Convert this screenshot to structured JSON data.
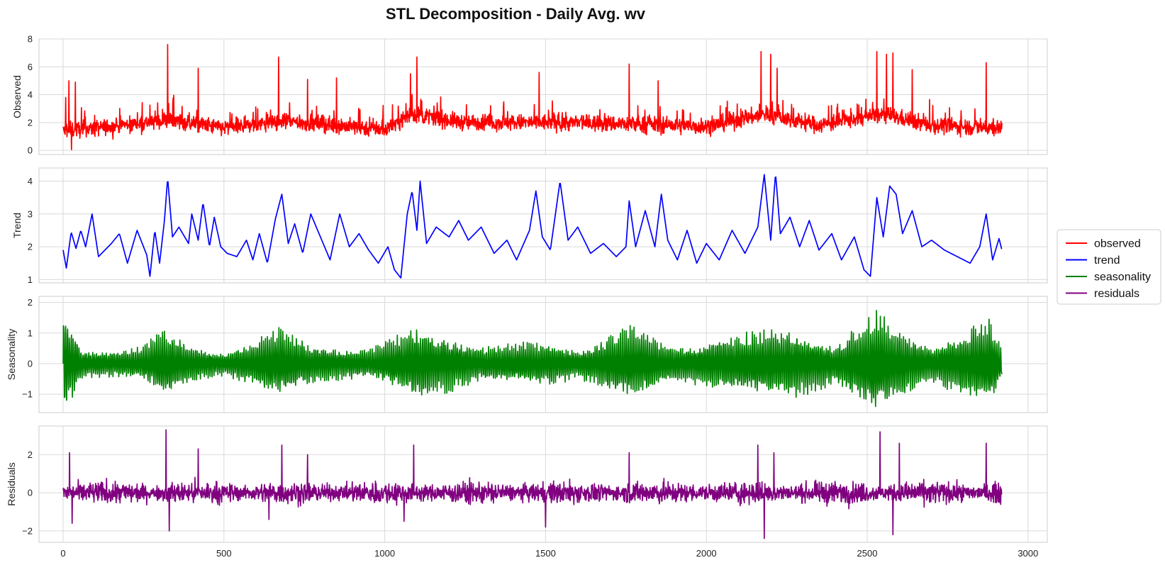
{
  "chart_data": {
    "type": "line",
    "title": "STL Decomposition - Daily Avg. wv",
    "xlim": [
      -75,
      3060
    ],
    "x_ticks": [
      "0",
      "500",
      "1000",
      "1500",
      "2000",
      "2500",
      "3000"
    ],
    "n_points": 2920,
    "grid": true,
    "legend": {
      "placement": "right-center",
      "entries": [
        "observed",
        "trend",
        "seasonality",
        "residuals"
      ]
    },
    "panels": [
      {
        "key": "observed",
        "ylabel": "Observed",
        "color": "#ff0000",
        "ylim": [
          -0.3,
          8.0
        ],
        "y_ticks": [
          "0",
          "2",
          "4",
          "6",
          "8"
        ],
        "baseline": [
          [
            0,
            1.4
          ],
          [
            150,
            1.7
          ],
          [
            330,
            2.2
          ],
          [
            500,
            1.6
          ],
          [
            680,
            2.1
          ],
          [
            850,
            1.8
          ],
          [
            1000,
            1.5
          ],
          [
            1080,
            2.6
          ],
          [
            1250,
            2.0
          ],
          [
            1500,
            2.0
          ],
          [
            1750,
            1.9
          ],
          [
            2000,
            1.7
          ],
          [
            2180,
            2.6
          ],
          [
            2350,
            1.8
          ],
          [
            2550,
            2.6
          ],
          [
            2700,
            1.8
          ],
          [
            2920,
            1.6
          ]
        ],
        "amplitude": 0.55,
        "spikes": [
          [
            8,
            3.8
          ],
          [
            18,
            5.0
          ],
          [
            26,
            0.05
          ],
          [
            38,
            4.9
          ],
          [
            325,
            7.6
          ],
          [
            420,
            5.9
          ],
          [
            670,
            6.7
          ],
          [
            760,
            5.1
          ],
          [
            850,
            5.2
          ],
          [
            1080,
            5.5
          ],
          [
            1100,
            6.7
          ],
          [
            1480,
            5.6
          ],
          [
            1760,
            6.2
          ],
          [
            1850,
            5.0
          ],
          [
            2170,
            7.1
          ],
          [
            2200,
            6.9
          ],
          [
            2220,
            5.9
          ],
          [
            2530,
            7.1
          ],
          [
            2560,
            6.9
          ],
          [
            2580,
            7.0
          ],
          [
            2640,
            5.8
          ],
          [
            2870,
            6.3
          ]
        ],
        "values_sampled_every_40": [
          1.4,
          1.8,
          2.1,
          1.5,
          2.6,
          1.9,
          2.3,
          2.8,
          2.4,
          2.0,
          1.7,
          1.9,
          2.2,
          2.0,
          1.9,
          2.4,
          2.1,
          2.3,
          2.0,
          1.6,
          2.2,
          1.8,
          2.0,
          1.8,
          2.4,
          1.9,
          3.0,
          2.6,
          2.2,
          2.1,
          2.0,
          2.3,
          1.8,
          2.2,
          2.1,
          1.9,
          2.0,
          2.2,
          2.1,
          1.8,
          1.7,
          1.9,
          1.8,
          2.1,
          2.0,
          1.9,
          2.0,
          1.8,
          1.9,
          1.8,
          1.7,
          1.8,
          2.2,
          2.4,
          2.6,
          2.8,
          2.3,
          2.0,
          1.9,
          1.9,
          1.8,
          2.0,
          2.1,
          2.7,
          2.9,
          2.5,
          2.3,
          2.1,
          1.8,
          1.7,
          1.6,
          1.7,
          1.6
        ]
      },
      {
        "key": "trend",
        "ylabel": "Trend",
        "color": "#0000ff",
        "ylim": [
          0.9,
          4.4
        ],
        "y_ticks": [
          "1",
          "2",
          "3",
          "4"
        ],
        "points": [
          [
            0,
            1.9
          ],
          [
            10,
            1.35
          ],
          [
            25,
            2.45
          ],
          [
            40,
            1.95
          ],
          [
            55,
            2.5
          ],
          [
            70,
            2.0
          ],
          [
            90,
            3.0
          ],
          [
            110,
            1.7
          ],
          [
            150,
            2.1
          ],
          [
            175,
            2.4
          ],
          [
            200,
            1.5
          ],
          [
            230,
            2.5
          ],
          [
            260,
            1.75
          ],
          [
            270,
            1.1
          ],
          [
            285,
            2.5
          ],
          [
            300,
            1.5
          ],
          [
            315,
            2.8
          ],
          [
            325,
            4.1
          ],
          [
            340,
            2.3
          ],
          [
            360,
            2.6
          ],
          [
            390,
            2.1
          ],
          [
            400,
            3.0
          ],
          [
            420,
            2.2
          ],
          [
            435,
            3.35
          ],
          [
            455,
            2.0
          ],
          [
            470,
            2.9
          ],
          [
            490,
            2.0
          ],
          [
            510,
            1.8
          ],
          [
            540,
            1.7
          ],
          [
            570,
            2.2
          ],
          [
            590,
            1.6
          ],
          [
            610,
            2.4
          ],
          [
            635,
            1.5
          ],
          [
            660,
            2.85
          ],
          [
            680,
            3.6
          ],
          [
            700,
            2.1
          ],
          [
            720,
            2.7
          ],
          [
            745,
            1.8
          ],
          [
            770,
            3.0
          ],
          [
            800,
            2.3
          ],
          [
            830,
            1.6
          ],
          [
            860,
            3.0
          ],
          [
            890,
            2.0
          ],
          [
            920,
            2.4
          ],
          [
            950,
            1.9
          ],
          [
            980,
            1.5
          ],
          [
            1010,
            2.0
          ],
          [
            1030,
            1.3
          ],
          [
            1050,
            1.05
          ],
          [
            1070,
            3.0
          ],
          [
            1085,
            3.7
          ],
          [
            1100,
            2.5
          ],
          [
            1110,
            4.0
          ],
          [
            1130,
            2.1
          ],
          [
            1160,
            2.6
          ],
          [
            1200,
            2.3
          ],
          [
            1230,
            2.8
          ],
          [
            1260,
            2.2
          ],
          [
            1300,
            2.6
          ],
          [
            1340,
            1.8
          ],
          [
            1380,
            2.2
          ],
          [
            1410,
            1.6
          ],
          [
            1450,
            2.5
          ],
          [
            1470,
            3.7
          ],
          [
            1490,
            2.3
          ],
          [
            1515,
            1.9
          ],
          [
            1545,
            4.0
          ],
          [
            1570,
            2.2
          ],
          [
            1600,
            2.6
          ],
          [
            1640,
            1.8
          ],
          [
            1680,
            2.1
          ],
          [
            1720,
            1.7
          ],
          [
            1750,
            2.0
          ],
          [
            1760,
            3.4
          ],
          [
            1780,
            2.0
          ],
          [
            1810,
            3.1
          ],
          [
            1840,
            2.0
          ],
          [
            1860,
            3.6
          ],
          [
            1880,
            2.2
          ],
          [
            1910,
            1.6
          ],
          [
            1940,
            2.5
          ],
          [
            1970,
            1.5
          ],
          [
            2000,
            2.1
          ],
          [
            2040,
            1.6
          ],
          [
            2080,
            2.5
          ],
          [
            2120,
            1.8
          ],
          [
            2160,
            2.6
          ],
          [
            2180,
            4.2
          ],
          [
            2200,
            2.2
          ],
          [
            2215,
            4.25
          ],
          [
            2230,
            2.4
          ],
          [
            2260,
            2.9
          ],
          [
            2290,
            2.0
          ],
          [
            2320,
            2.8
          ],
          [
            2350,
            1.9
          ],
          [
            2390,
            2.4
          ],
          [
            2420,
            1.6
          ],
          [
            2460,
            2.3
          ],
          [
            2490,
            1.3
          ],
          [
            2510,
            1.1
          ],
          [
            2530,
            3.5
          ],
          [
            2550,
            2.3
          ],
          [
            2570,
            3.85
          ],
          [
            2590,
            3.6
          ],
          [
            2610,
            2.4
          ],
          [
            2640,
            3.1
          ],
          [
            2670,
            2.0
          ],
          [
            2700,
            2.2
          ],
          [
            2740,
            1.9
          ],
          [
            2780,
            1.7
          ],
          [
            2820,
            1.5
          ],
          [
            2850,
            2.0
          ],
          [
            2870,
            3.0
          ],
          [
            2890,
            1.6
          ],
          [
            2910,
            2.25
          ],
          [
            2920,
            1.85
          ]
        ]
      },
      {
        "key": "seasonality",
        "ylabel": "Seasonality",
        "color": "#008000",
        "ylim": [
          -1.6,
          2.2
        ],
        "y_ticks": [
          "−1",
          "0",
          "1",
          "2"
        ],
        "envelope": [
          [
            0,
            2.05
          ],
          [
            20,
            1.4
          ],
          [
            60,
            0.55
          ],
          [
            150,
            0.45
          ],
          [
            250,
            0.6
          ],
          [
            320,
            1.3
          ],
          [
            380,
            0.7
          ],
          [
            500,
            0.4
          ],
          [
            670,
            1.2
          ],
          [
            800,
            0.6
          ],
          [
            950,
            0.5
          ],
          [
            1030,
            0.9
          ],
          [
            1100,
            1.3
          ],
          [
            1300,
            0.6
          ],
          [
            1500,
            0.8
          ],
          [
            1600,
            0.5
          ],
          [
            1760,
            1.3
          ],
          [
            1900,
            0.6
          ],
          [
            2100,
            1.0
          ],
          [
            2250,
            1.3
          ],
          [
            2400,
            0.7
          ],
          [
            2530,
            1.9
          ],
          [
            2600,
            1.2
          ],
          [
            2700,
            0.6
          ],
          [
            2880,
            1.6
          ],
          [
            2920,
            0.6
          ]
        ]
      },
      {
        "key": "residuals",
        "ylabel": "Residuals",
        "color": "#800080",
        "ylim": [
          -2.6,
          3.5
        ],
        "y_ticks": [
          "−2",
          "0",
          "2"
        ],
        "amplitude": 0.55,
        "spikes": [
          [
            20,
            2.1
          ],
          [
            28,
            -1.6
          ],
          [
            320,
            3.3
          ],
          [
            330,
            -2.0
          ],
          [
            420,
            2.3
          ],
          [
            640,
            -1.4
          ],
          [
            680,
            2.5
          ],
          [
            760,
            2.0
          ],
          [
            1060,
            -1.5
          ],
          [
            1090,
            2.5
          ],
          [
            1500,
            -1.8
          ],
          [
            1760,
            2.1
          ],
          [
            2160,
            2.5
          ],
          [
            2180,
            -2.4
          ],
          [
            2210,
            2.1
          ],
          [
            2540,
            3.2
          ],
          [
            2580,
            -2.2
          ],
          [
            2600,
            2.6
          ],
          [
            2870,
            2.6
          ]
        ]
      }
    ]
  }
}
